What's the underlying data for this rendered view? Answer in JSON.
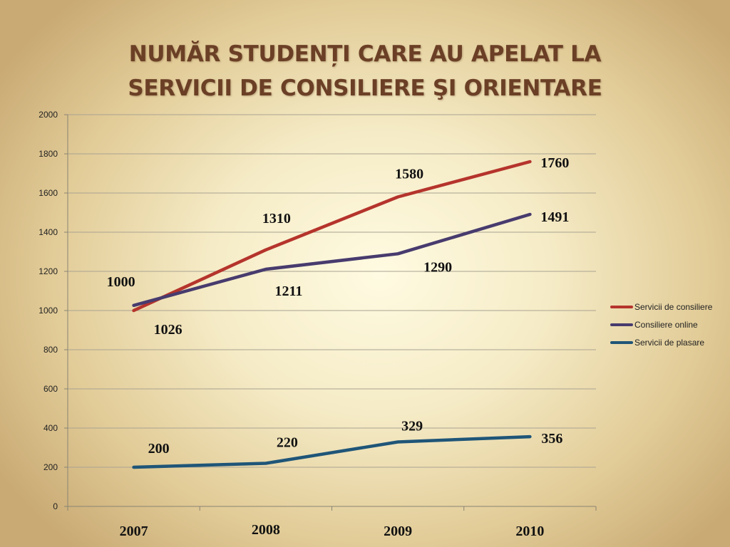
{
  "slide": {
    "title_line1": "NUMĂR STUDENȚI CARE AU APELAT LA",
    "title_line2": "SERVICII DE CONSILIERE ŞI ORIENTARE"
  },
  "chart_data": {
    "type": "line",
    "title": "NUMĂR STUDENȚI CARE AU APELAT LA SERVICII DE CONSILIERE ŞI ORIENTARE",
    "categories": [
      "2007",
      "2008",
      "2009",
      "2010"
    ],
    "ylim": [
      0,
      2000
    ],
    "yticks": [
      0,
      200,
      400,
      600,
      800,
      1000,
      1200,
      1400,
      1600,
      1800,
      2000
    ],
    "grid": true,
    "legend_position": "right",
    "series": [
      {
        "name": "Servicii de consiliere",
        "color": "#b5342c",
        "values": [
          1000,
          1310,
          1580,
          1760
        ],
        "labels": [
          "1000",
          "1310",
          "1580",
          "1760"
        ]
      },
      {
        "name": "Consiliere online",
        "color": "#473b6e",
        "values": [
          1026,
          1211,
          1290,
          1491
        ],
        "labels": [
          "1026",
          "1211",
          "1290",
          "1491"
        ]
      },
      {
        "name": "Servicii de plasare",
        "color": "#1f5578",
        "values": [
          200,
          220,
          329,
          356
        ],
        "labels": [
          "200",
          "220",
          "329",
          "356"
        ]
      }
    ]
  }
}
